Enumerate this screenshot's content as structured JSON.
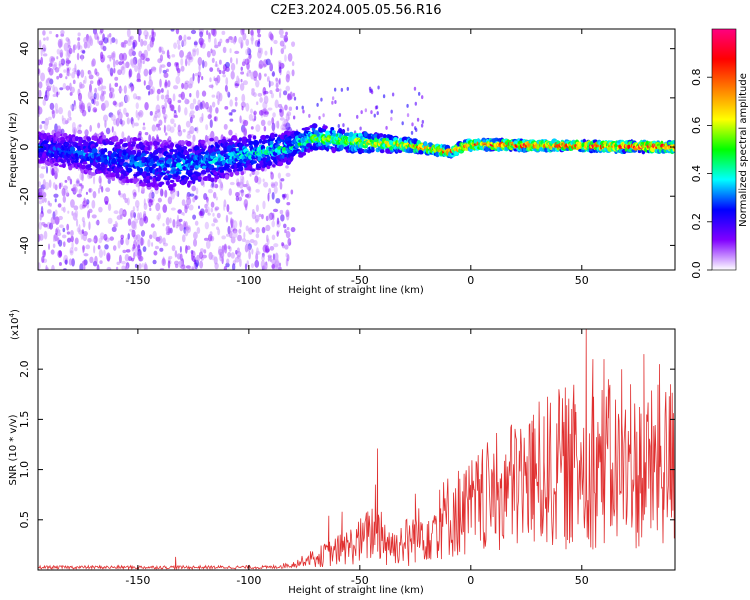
{
  "title": "C2E3.2024.005.05.56.R16",
  "chart_data": [
    {
      "type": "heatmap",
      "xlabel": "Height of straight line (km)",
      "ylabel": "Frequency (Hz)",
      "xlim": [
        -195,
        92
      ],
      "ylim": [
        -50,
        48
      ],
      "xticks": [
        -150,
        -100,
        -50,
        0,
        50
      ],
      "yticks": [
        -40,
        -20,
        0,
        20,
        40
      ],
      "colorbar": {
        "label": "Normalized spectral amplitude",
        "range": [
          0,
          1
        ],
        "ticks": [
          0.0,
          0.2,
          0.4,
          0.6,
          0.8
        ],
        "tick_labels": [
          "0.0",
          "0.2",
          "0.4",
          "0.6",
          "0.8"
        ],
        "colormap": [
          "#ffffff",
          "#8000ff",
          "#0000ff",
          "#00ffff",
          "#00ff00",
          "#ffff00",
          "#ff8000",
          "#ff0000",
          "#ff0080"
        ]
      },
      "band": {
        "center_hz": [
          [
            -195,
            0
          ],
          [
            -135,
            -8
          ],
          [
            -80,
            0
          ],
          [
            -72,
            4
          ],
          [
            -50,
            2
          ],
          [
            -30,
            1
          ],
          [
            -10,
            -2
          ],
          [
            0,
            1
          ],
          [
            90,
            0
          ]
        ],
        "halfwidth_hz": [
          [
            -195,
            6
          ],
          [
            -140,
            10
          ],
          [
            -80,
            6
          ],
          [
            -72,
            5
          ],
          [
            -50,
            4
          ],
          [
            -20,
            2
          ],
          [
            90,
            2
          ]
        ],
        "peak_amplitude": [
          [
            -195,
            0.3
          ],
          [
            -140,
            0.35
          ],
          [
            -80,
            0.45
          ],
          [
            -72,
            0.55
          ],
          [
            -40,
            0.7
          ],
          [
            -10,
            0.85
          ],
          [
            90,
            0.95
          ]
        ],
        "scatter_noise_until_km": -80
      }
    },
    {
      "type": "line",
      "xlabel": "Height of straight line (km)",
      "ylabel": "SNR (10 * v/v)",
      "scale_label": "(x10",
      "scale_exponent": "4",
      "scale_suffix": ")",
      "xlim": [
        -195,
        92
      ],
      "ylim": [
        0,
        24000
      ],
      "xticks": [
        -150,
        -100,
        -50,
        0,
        50
      ],
      "yticks": [
        5000,
        10000,
        15000,
        20000
      ],
      "ytick_labels": [
        "0.5",
        "1.0",
        "1.5",
        "2.0"
      ],
      "color": "#e03030",
      "envelope": [
        [
          -195,
          300
        ],
        [
          -90,
          300
        ],
        [
          -80,
          600
        ],
        [
          -65,
          2000
        ],
        [
          -55,
          3000
        ],
        [
          -48,
          4000
        ],
        [
          -42,
          5500
        ],
        [
          -35,
          3000
        ],
        [
          -20,
          5000
        ],
        [
          -10,
          7000
        ],
        [
          0,
          8000
        ],
        [
          10,
          9500
        ],
        [
          20,
          11000
        ],
        [
          30,
          12000
        ],
        [
          40,
          13000
        ],
        [
          50,
          13500
        ],
        [
          60,
          13500
        ],
        [
          70,
          12500
        ],
        [
          80,
          13000
        ],
        [
          92,
          13500
        ]
      ],
      "peaks": [
        [
          -133,
          1300
        ],
        [
          -64,
          5400
        ],
        [
          -58,
          5800
        ],
        [
          -43,
          8500
        ],
        [
          -42,
          12100
        ],
        [
          -25,
          7600
        ],
        [
          -14,
          8000
        ],
        [
          5,
          10500
        ],
        [
          28,
          13700
        ],
        [
          33,
          15300
        ],
        [
          40,
          17200
        ],
        [
          47,
          16500
        ],
        [
          52,
          24000
        ],
        [
          55,
          21000
        ],
        [
          60,
          21000
        ],
        [
          62,
          19000
        ],
        [
          68,
          20000
        ],
        [
          72,
          18500
        ],
        [
          73,
          9000
        ],
        [
          78,
          21500
        ],
        [
          85,
          20500
        ],
        [
          90,
          18500
        ]
      ],
      "dips": [
        [
          -38,
          500
        ],
        [
          -28,
          400
        ],
        [
          -15,
          1200
        ],
        [
          -5,
          1800
        ],
        [
          2,
          3500
        ],
        [
          28,
          5500
        ],
        [
          51,
          5300
        ],
        [
          70,
          4500
        ],
        [
          87,
          6000
        ]
      ]
    }
  ]
}
